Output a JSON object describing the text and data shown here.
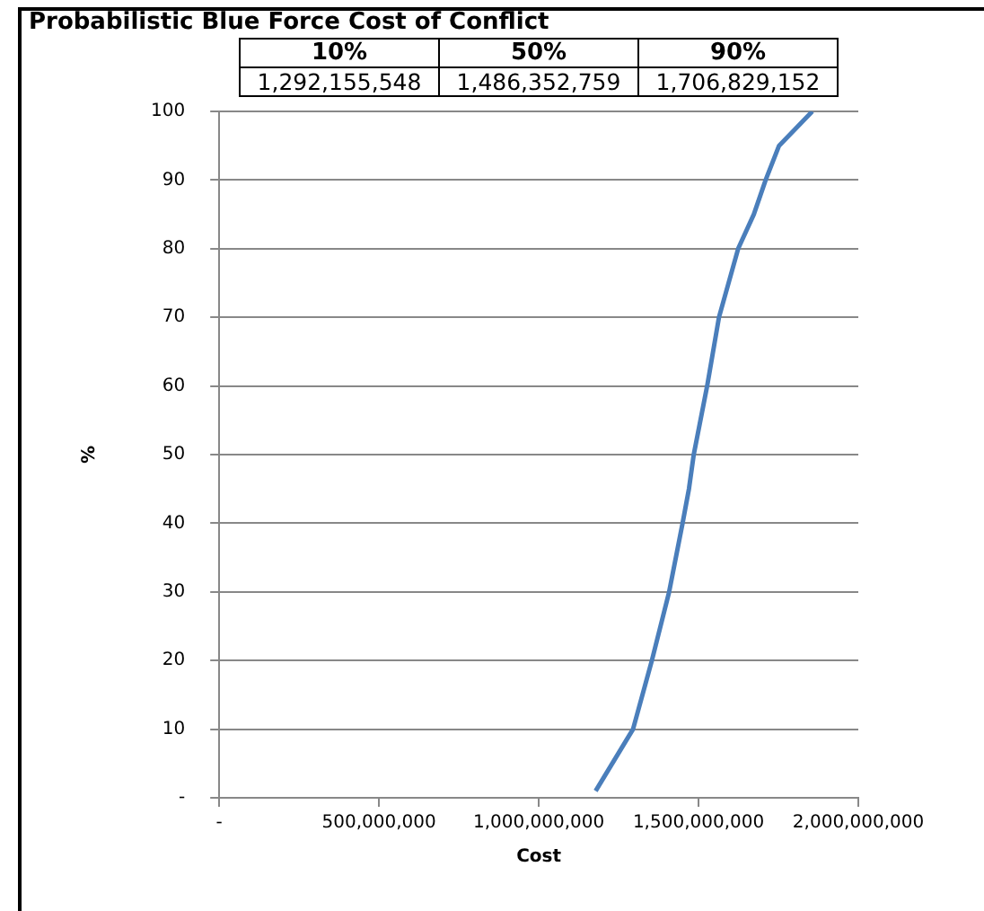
{
  "chart_data": {
    "type": "line",
    "title": "Probabilistic Blue Force Cost of Conflict",
    "xlabel": "Cost",
    "ylabel": "%",
    "x": [
      1178000000,
      1295000000,
      1354000000,
      1408000000,
      1450000000,
      1470000000,
      1485000000,
      1527000000,
      1564000000,
      1624000000,
      1673000000,
      1710000000,
      1752000000,
      1856000000
    ],
    "series": [
      {
        "color": "#4a7ebb",
        "values": [
          1,
          10,
          20,
          30,
          40,
          45,
          50,
          60,
          70,
          80,
          85,
          90,
          95,
          100
        ]
      }
    ],
    "xlim": [
      0,
      2000000000
    ],
    "xticks": [
      {
        "value": 0,
        "label": "-"
      },
      {
        "value": 500000000,
        "label": "500,000,000"
      },
      {
        "value": 1000000000,
        "label": "1,000,000,000"
      },
      {
        "value": 1500000000,
        "label": "1,500,000,000"
      },
      {
        "value": 2000000000,
        "label": "2,000,000,000"
      }
    ],
    "ylim": [
      0,
      100
    ],
    "yticks": [
      {
        "value": 0,
        "label": "-"
      },
      10,
      20,
      30,
      40,
      50,
      60,
      70,
      80,
      90,
      100
    ],
    "grid": "y",
    "legend": false,
    "marker": "none",
    "line_style": "solid",
    "annotations": [
      "10%",
      "50%",
      "90%",
      "1,292,155,548",
      "1,486,352,759",
      "1,706,829,152"
    ]
  }
}
